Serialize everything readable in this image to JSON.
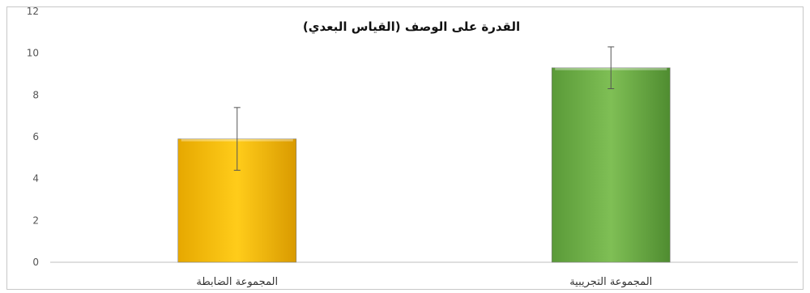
{
  "chart_data": {
    "type": "bar",
    "title": "القدرة على الوصف (القياس البعدي)",
    "categories": [
      "المجموعة الضابطة",
      "المجموعة التجريبية"
    ],
    "values": [
      5.9,
      9.3
    ],
    "error": [
      1.5,
      1.0
    ],
    "colors": [
      "#ffc000",
      "#70ad47"
    ],
    "ylim": [
      0,
      12
    ],
    "yticks": [
      "0",
      "2",
      "4",
      "6",
      "8",
      "10",
      "12"
    ],
    "grid": false,
    "legend": "none"
  }
}
